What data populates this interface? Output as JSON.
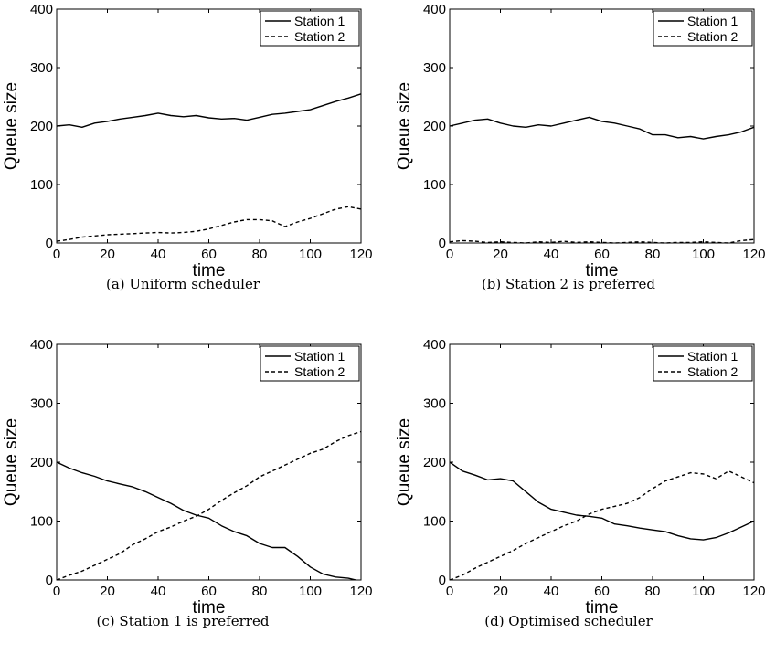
{
  "chart_data": [
    {
      "type": "line",
      "caption": "(a) Uniform scheduler",
      "xlabel": "time",
      "ylabel": "Queue size",
      "xlim": [
        0,
        120
      ],
      "ylim": [
        0,
        400
      ],
      "xticks": [
        0,
        20,
        40,
        60,
        80,
        100,
        120
      ],
      "yticks": [
        0,
        100,
        200,
        300,
        400
      ],
      "legend": "top-right",
      "grid": false,
      "series": [
        {
          "name": "Station 1",
          "style": "solid",
          "x": [
            0,
            5,
            10,
            15,
            20,
            25,
            30,
            35,
            40,
            45,
            50,
            55,
            60,
            65,
            70,
            75,
            80,
            85,
            90,
            95,
            100,
            105,
            110,
            115,
            120
          ],
          "y": [
            200,
            202,
            198,
            205,
            208,
            212,
            215,
            218,
            222,
            218,
            216,
            218,
            214,
            212,
            213,
            210,
            215,
            220,
            222,
            225,
            228,
            235,
            242,
            248,
            255
          ]
        },
        {
          "name": "Station 2",
          "style": "dashed",
          "x": [
            0,
            5,
            10,
            15,
            20,
            25,
            30,
            35,
            40,
            45,
            50,
            55,
            60,
            65,
            70,
            75,
            80,
            85,
            90,
            95,
            100,
            105,
            110,
            115,
            120
          ],
          "y": [
            3,
            6,
            10,
            12,
            14,
            15,
            16,
            17,
            18,
            17,
            18,
            20,
            24,
            30,
            36,
            40,
            40,
            38,
            28,
            36,
            42,
            50,
            58,
            62,
            58
          ]
        }
      ]
    },
    {
      "type": "line",
      "caption": "(b) Station 2 is preferred",
      "xlabel": "time",
      "ylabel": "Queue size",
      "xlim": [
        0,
        120
      ],
      "ylim": [
        0,
        400
      ],
      "xticks": [
        0,
        20,
        40,
        60,
        80,
        100,
        120
      ],
      "yticks": [
        0,
        100,
        200,
        300,
        400
      ],
      "legend": "top-right",
      "grid": false,
      "series": [
        {
          "name": "Station 1",
          "style": "solid",
          "x": [
            0,
            5,
            10,
            15,
            20,
            25,
            30,
            35,
            40,
            45,
            50,
            55,
            60,
            65,
            70,
            75,
            80,
            85,
            90,
            95,
            100,
            105,
            110,
            115,
            120
          ],
          "y": [
            200,
            205,
            210,
            212,
            205,
            200,
            198,
            202,
            200,
            205,
            210,
            215,
            208,
            205,
            200,
            195,
            185,
            185,
            180,
            182,
            178,
            182,
            185,
            190,
            198
          ]
        },
        {
          "name": "Station 2",
          "style": "dashed",
          "x": [
            0,
            5,
            10,
            15,
            20,
            25,
            30,
            35,
            40,
            45,
            50,
            55,
            60,
            65,
            70,
            75,
            80,
            85,
            90,
            95,
            100,
            105,
            110,
            115,
            120
          ],
          "y": [
            2,
            4,
            3,
            1,
            2,
            1,
            0,
            2,
            1,
            3,
            1,
            2,
            1,
            0,
            1,
            2,
            1,
            0,
            1,
            1,
            2,
            1,
            0,
            4,
            6
          ]
        }
      ]
    },
    {
      "type": "line",
      "caption": "(c) Station 1 is preferred",
      "xlabel": "time",
      "ylabel": "Queue size",
      "xlim": [
        0,
        120
      ],
      "ylim": [
        0,
        400
      ],
      "xticks": [
        0,
        20,
        40,
        60,
        80,
        100,
        120
      ],
      "yticks": [
        0,
        100,
        200,
        300,
        400
      ],
      "legend": "top-right",
      "grid": false,
      "series": [
        {
          "name": "Station 1",
          "style": "solid",
          "x": [
            0,
            5,
            10,
            15,
            20,
            25,
            30,
            35,
            40,
            45,
            50,
            55,
            60,
            65,
            70,
            75,
            80,
            85,
            90,
            95,
            100,
            105,
            110,
            115,
            118
          ],
          "y": [
            200,
            190,
            182,
            176,
            168,
            163,
            158,
            150,
            140,
            130,
            118,
            110,
            105,
            92,
            82,
            75,
            62,
            55,
            55,
            40,
            22,
            10,
            5,
            3,
            0
          ]
        },
        {
          "name": "Station 2",
          "style": "dashed",
          "x": [
            0,
            5,
            10,
            15,
            20,
            25,
            30,
            35,
            40,
            45,
            50,
            55,
            60,
            65,
            70,
            75,
            80,
            85,
            90,
            95,
            100,
            105,
            110,
            115,
            120
          ],
          "y": [
            0,
            8,
            15,
            25,
            35,
            45,
            60,
            70,
            82,
            90,
            100,
            108,
            120,
            135,
            148,
            160,
            175,
            185,
            195,
            205,
            215,
            222,
            235,
            245,
            252
          ]
        }
      ]
    },
    {
      "type": "line",
      "caption": "(d) Optimised scheduler",
      "xlabel": "time",
      "ylabel": "Queue size",
      "xlim": [
        0,
        120
      ],
      "ylim": [
        0,
        400
      ],
      "xticks": [
        0,
        20,
        40,
        60,
        80,
        100,
        120
      ],
      "yticks": [
        0,
        100,
        200,
        300,
        400
      ],
      "legend": "top-right",
      "grid": false,
      "series": [
        {
          "name": "Station 1",
          "style": "solid",
          "x": [
            0,
            5,
            10,
            15,
            20,
            25,
            30,
            35,
            40,
            45,
            50,
            55,
            60,
            65,
            70,
            75,
            80,
            85,
            90,
            95,
            100,
            105,
            110,
            115,
            120
          ],
          "y": [
            200,
            185,
            178,
            170,
            172,
            168,
            150,
            132,
            120,
            115,
            110,
            108,
            105,
            95,
            92,
            88,
            85,
            82,
            75,
            70,
            68,
            72,
            80,
            90,
            100
          ]
        },
        {
          "name": "Station 2",
          "style": "dashed",
          "x": [
            0,
            5,
            10,
            15,
            20,
            25,
            30,
            35,
            40,
            45,
            50,
            55,
            60,
            65,
            70,
            75,
            80,
            85,
            90,
            95,
            100,
            105,
            110,
            115,
            120
          ],
          "y": [
            0,
            8,
            20,
            30,
            40,
            50,
            62,
            72,
            82,
            92,
            100,
            112,
            120,
            125,
            130,
            140,
            155,
            168,
            175,
            182,
            180,
            172,
            185,
            175,
            165
          ]
        }
      ]
    }
  ]
}
